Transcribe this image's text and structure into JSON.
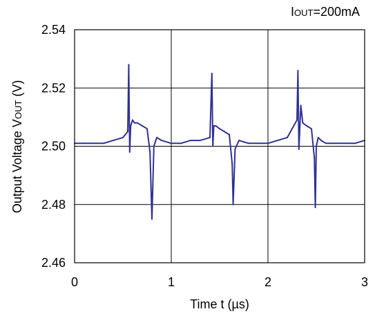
{
  "chart_data": {
    "type": "line",
    "annotation": {
      "main": "I",
      "sub": "OUT",
      "rest": "=200mA"
    },
    "xlabel": {
      "main": "Time t  (",
      "mu": "µ",
      "rest": "s)"
    },
    "ylabel": {
      "main": "Output Voltage V",
      "sub": "OUT",
      "rest": " (V)"
    },
    "xlim": [
      0,
      3
    ],
    "ylim": [
      2.46,
      2.54
    ],
    "xticks": [
      "0",
      "1",
      "2",
      "3"
    ],
    "yticks": [
      "2.46",
      "2.48",
      "2.50",
      "2.52",
      "2.54"
    ],
    "grid": true,
    "series": [
      {
        "color": "#2e3192",
        "x": [
          0,
          0.1,
          0.2,
          0.3,
          0.4,
          0.5,
          0.55,
          0.56,
          0.57,
          0.58,
          0.6,
          0.62,
          0.65,
          0.7,
          0.75,
          0.78,
          0.8,
          0.82,
          0.85,
          0.9,
          1.0,
          1.1,
          1.2,
          1.3,
          1.4,
          1.42,
          1.43,
          1.44,
          1.46,
          1.5,
          1.55,
          1.6,
          1.63,
          1.64,
          1.66,
          1.7,
          1.8,
          1.9,
          2.0,
          2.1,
          2.2,
          2.25,
          2.3,
          2.31,
          2.32,
          2.34,
          2.36,
          2.4,
          2.45,
          2.48,
          2.49,
          2.5,
          2.52,
          2.55,
          2.6,
          2.7,
          2.8,
          2.9,
          3.0
        ],
        "y": [
          2.501,
          2.501,
          2.501,
          2.501,
          2.502,
          2.503,
          2.505,
          2.528,
          2.498,
          2.507,
          2.509,
          2.508,
          2.508,
          2.507,
          2.506,
          2.498,
          2.475,
          2.5,
          2.503,
          2.502,
          2.501,
          2.501,
          2.502,
          2.502,
          2.503,
          2.525,
          2.5,
          2.507,
          2.507,
          2.506,
          2.505,
          2.504,
          2.494,
          2.48,
          2.499,
          2.502,
          2.501,
          2.501,
          2.501,
          2.502,
          2.503,
          2.506,
          2.509,
          2.526,
          2.499,
          2.514,
          2.508,
          2.507,
          2.506,
          2.496,
          2.479,
          2.5,
          2.503,
          2.502,
          2.501,
          2.501,
          2.501,
          2.501,
          2.502
        ]
      }
    ]
  }
}
